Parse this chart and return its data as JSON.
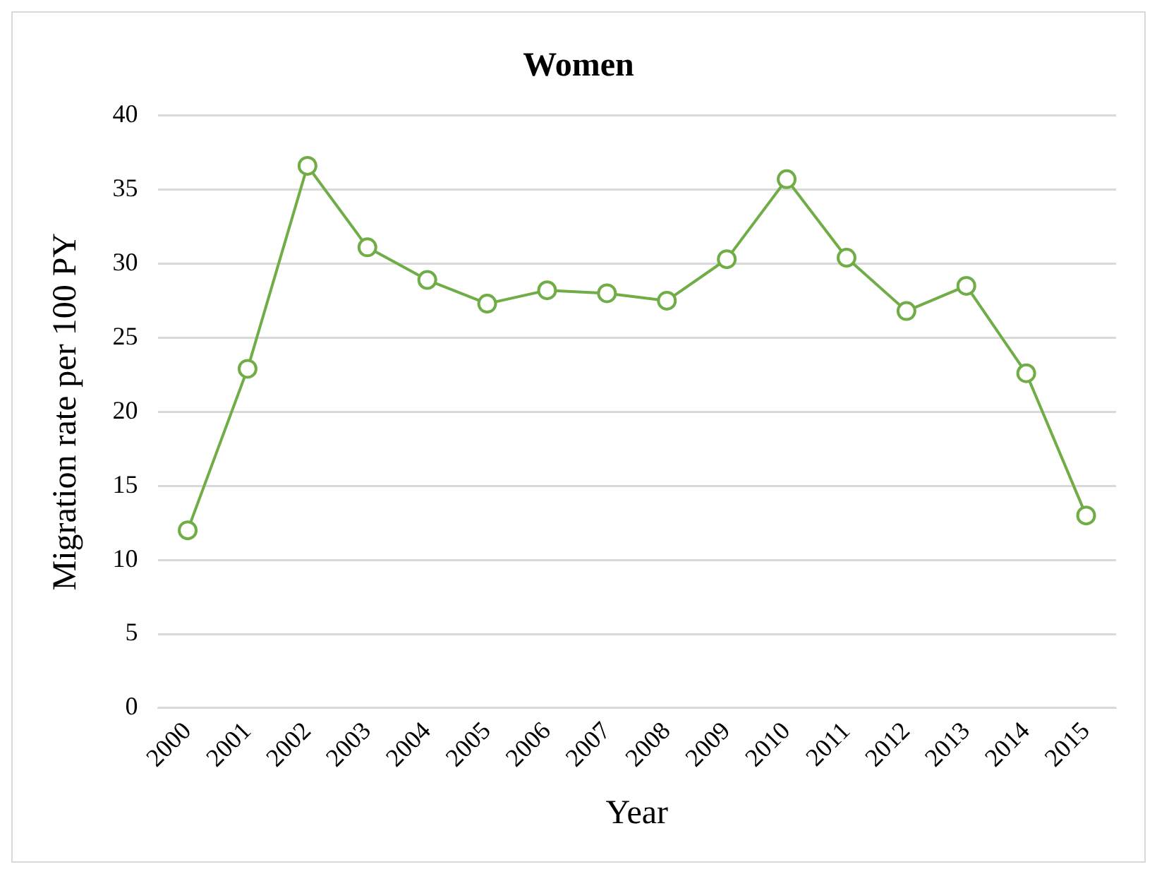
{
  "chart_data": {
    "type": "line",
    "title": "Women",
    "xlabel": "Year",
    "ylabel": "Migration rate per 100 PY",
    "categories": [
      "2000",
      "2001",
      "2002",
      "2003",
      "2004",
      "2005",
      "2006",
      "2007",
      "2008",
      "2009",
      "2010",
      "2011",
      "2012",
      "2013",
      "2014",
      "2015"
    ],
    "series": [
      {
        "color": "#70ad47",
        "values": [
          12.0,
          22.9,
          36.6,
          31.1,
          28.9,
          27.3,
          28.2,
          28.0,
          27.5,
          30.3,
          35.7,
          30.4,
          26.8,
          28.5,
          22.6,
          13.0
        ]
      }
    ],
    "ylim": [
      0,
      40
    ],
    "yticks": [
      0,
      5,
      10,
      15,
      20,
      25,
      30,
      35,
      40
    ],
    "grid": "y",
    "legend": false,
    "marker": "circle",
    "line_style": "solid"
  }
}
